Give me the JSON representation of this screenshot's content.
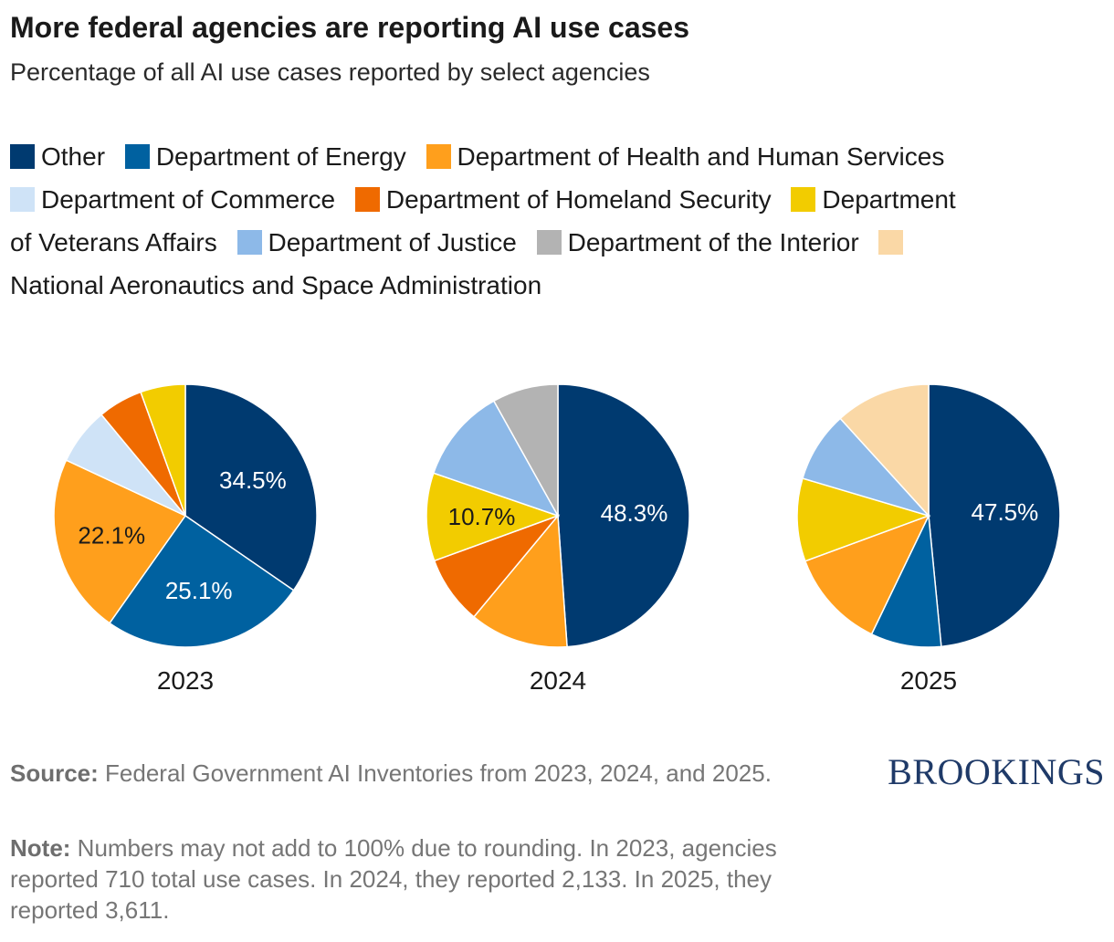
{
  "title": "More federal agencies are reporting AI use cases",
  "subtitle": "Percentage of all AI use cases reported by select agencies",
  "legend": [
    {
      "name": "Other",
      "color": "#003a70"
    },
    {
      "name": "Department of Energy",
      "color": "#0061a0"
    },
    {
      "name": "Department of Health and Human Services",
      "color": "#ff9f1c"
    },
    {
      "name": "Department of Commerce",
      "color": "#cfe3f7"
    },
    {
      "name": "Department of Homeland Security",
      "color": "#ef6a00"
    },
    {
      "name": "Department of Veterans Affairs",
      "color": "#f2cc00"
    },
    {
      "name": "Department of Justice",
      "color": "#8db9e8"
    },
    {
      "name": "Department of the Interior",
      "color": "#b3b3b3"
    },
    {
      "name": "National Aeronautics and Space Administration",
      "color": "#fad8a6"
    }
  ],
  "chart_data": [
    {
      "type": "pie",
      "title": "2023",
      "slices": [
        {
          "name": "Other",
          "value": 34.5,
          "label": "34.5%",
          "label_color": "#ffffff"
        },
        {
          "name": "Department of Energy",
          "value": 25.1,
          "label": "25.1%",
          "label_color": "#ffffff"
        },
        {
          "name": "Department of Health and Human Services",
          "value": 22.1,
          "label": "22.1%",
          "label_color": "#1a1a1a"
        },
        {
          "name": "Department of Commerce",
          "value": 7.0,
          "label": ""
        },
        {
          "name": "Department of Homeland Security",
          "value": 5.5,
          "label": ""
        },
        {
          "name": "Department of Veterans Affairs",
          "value": 5.5,
          "label": ""
        }
      ]
    },
    {
      "type": "pie",
      "title": "2024",
      "slices": [
        {
          "name": "Other",
          "value": 48.3,
          "label": "48.3%",
          "label_color": "#ffffff"
        },
        {
          "name": "Department of Health and Human Services",
          "value": 12.0,
          "label": ""
        },
        {
          "name": "Department of Homeland Security",
          "value": 8.3,
          "label": ""
        },
        {
          "name": "Department of Veterans Affairs",
          "value": 10.7,
          "label": "10.7%",
          "label_color": "#1a1a1a"
        },
        {
          "name": "Department of Justice",
          "value": 11.5,
          "label": ""
        },
        {
          "name": "Department of the Interior",
          "value": 8.0,
          "label": ""
        }
      ]
    },
    {
      "type": "pie",
      "title": "2025",
      "slices": [
        {
          "name": "Other",
          "value": 47.5,
          "label": "47.5%",
          "label_color": "#ffffff"
        },
        {
          "name": "Department of Energy",
          "value": 8.5,
          "label": ""
        },
        {
          "name": "Department of Health and Human Services",
          "value": 12.0,
          "label": ""
        },
        {
          "name": "Department of Veterans Affairs",
          "value": 10.0,
          "label": ""
        },
        {
          "name": "Department of Justice",
          "value": 8.5,
          "label": ""
        },
        {
          "name": "National Aeronautics and Space Administration",
          "value": 11.5,
          "label": ""
        }
      ]
    }
  ],
  "footer": {
    "source_label": "Source:",
    "source_text": " Federal Government AI Inventories from 2023, 2024, and 2025.",
    "note_label": "Note:",
    "note_text": " Numbers may not add to 100% due to rounding. In 2023, agencies reported 710 total use cases. In 2024, they reported 2,133. In 2025, they reported 3,611.",
    "logo": "BROOKINGS"
  }
}
